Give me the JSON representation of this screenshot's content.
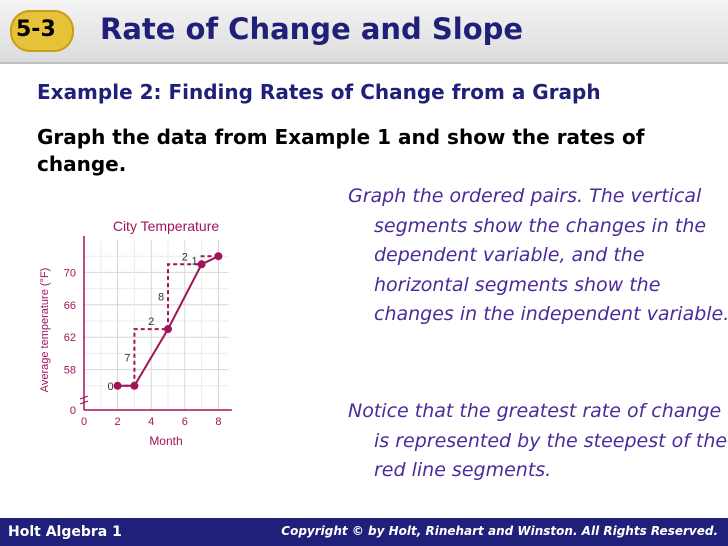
{
  "header": {
    "badge": "5-3",
    "title": "Rate of Change and Slope"
  },
  "example_heading": "Example 2: Finding Rates of Change from a Graph",
  "prompt": "Graph the data from Example 1 and show the rates of change.",
  "notes": [
    "Graph the ordered pairs. The vertical segments show the changes in the dependent variable, and the horizontal segments show the changes in the independent variable.",
    "Notice that the greatest rate of change is represented by the steepest of the red line segments."
  ],
  "footer": {
    "left": "Holt Algebra 1",
    "right": "Copyright © by Holt, Rinehart and Winston. All Rights Reserved."
  },
  "colors": {
    "navy": "#20207a",
    "note_purple": "#4b2a9b",
    "series": "#a0145a",
    "badge": "#e6c23a"
  },
  "chart_data": {
    "type": "line",
    "title": "City Temperature",
    "xlabel": "Month",
    "ylabel": "Average temperature (°F)",
    "x_ticks": [
      "0",
      "2",
      "4",
      "6",
      "8"
    ],
    "y_ticks": [
      "0",
      "58",
      "62",
      "66",
      "70"
    ],
    "xlim": [
      0,
      8
    ],
    "y_axis_break": true,
    "series": [
      {
        "x": [
          2,
          3,
          5,
          7,
          8
        ],
        "y": [
          56,
          56,
          63,
          71,
          72
        ]
      }
    ],
    "change_labels": {
      "vertical": [
        "0",
        "7",
        "8",
        "1"
      ],
      "horizontal": [
        "2",
        "2"
      ]
    }
  }
}
